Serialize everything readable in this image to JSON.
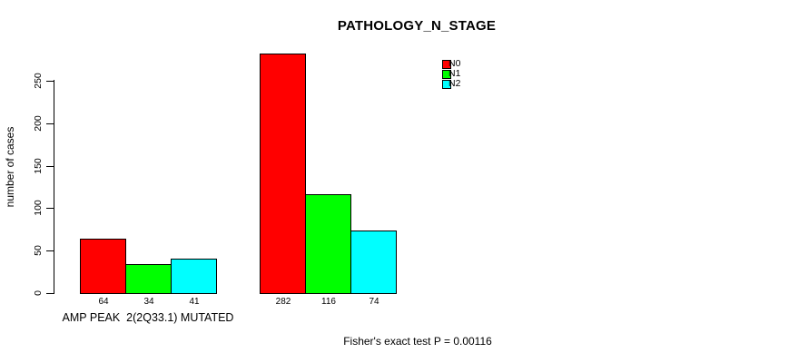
{
  "chart_data": {
    "type": "bar",
    "title": "PATHOLOGY_N_STAGE",
    "ylabel": "number of cases",
    "xlabel": "",
    "categories": [
      "AMP PEAK  2(2Q33.1) MUTATED",
      ""
    ],
    "series": [
      {
        "name": "N0",
        "color": "#ff0000",
        "values": [
          64,
          282
        ]
      },
      {
        "name": "N1",
        "color": "#00ff00",
        "values": [
          34,
          116
        ]
      },
      {
        "name": "N2",
        "color": "#00ffff",
        "values": [
          41,
          74
        ]
      }
    ],
    "yticks": [
      0,
      50,
      100,
      150,
      200,
      250
    ],
    "ylim": [
      0,
      282
    ],
    "grid": false,
    "legend_position": "top-right",
    "bar_value_labels": [
      [
        64,
        34,
        41
      ],
      [
        282,
        116,
        74
      ]
    ],
    "annotation": "Fisher's exact test P = 0.00116",
    "axis_color": "#000000",
    "background_color": "#ffffff"
  }
}
